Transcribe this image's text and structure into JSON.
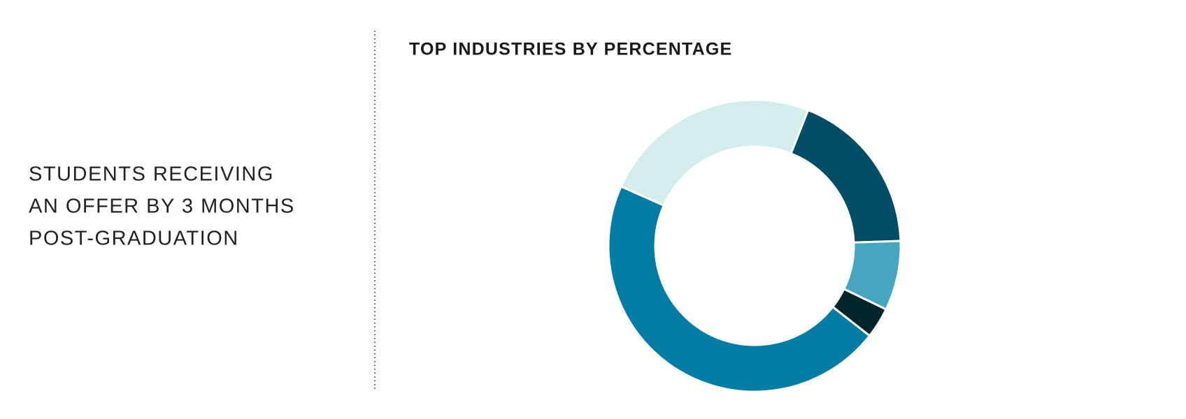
{
  "side_text": {
    "lines": [
      "STUDENTS RECEIVING",
      "AN OFFER BY 3 MONTHS",
      "POST-GRADUATION"
    ]
  },
  "chart_data": {
    "type": "donut",
    "title": "TOP INDUSTRIES BY PERCENTAGE",
    "categories": [
      null,
      null,
      null,
      null,
      null
    ],
    "values": [
      18.5,
      7.7,
      3.4,
      46.1,
      24.3
    ],
    "colors": [
      "#004e66",
      "#44a6bf",
      "#00262c",
      "#007ca5",
      "#d3ecec"
    ]
  }
}
